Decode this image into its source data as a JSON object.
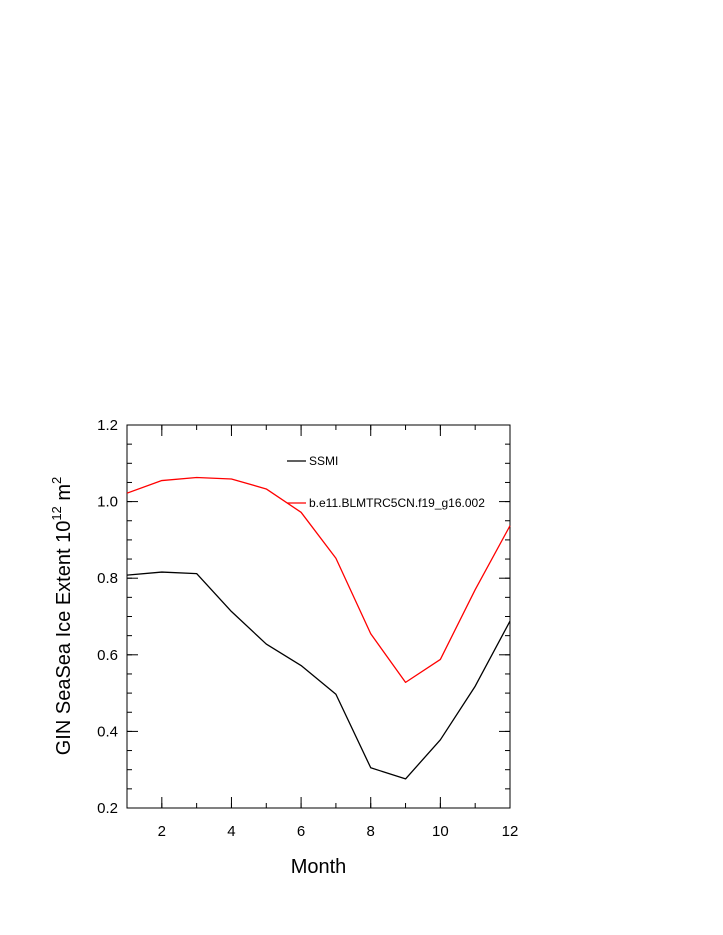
{
  "chart_data": {
    "type": "line",
    "xlabel": "Month",
    "ylabel": "GIN SeaSea Ice Extent 10",
    "ylabel_superscript": "12",
    "ylabel_unit": " m",
    "ylabel_unit_superscript": "2",
    "xlim": [
      1,
      12
    ],
    "ylim": [
      0.2,
      1.2
    ],
    "xticks": [
      2,
      4,
      6,
      8,
      10,
      12
    ],
    "xtick_labels": [
      "2",
      "4",
      "6",
      "8",
      "10",
      "12"
    ],
    "yticks": [
      0.2,
      0.4,
      0.6,
      0.8,
      1.0,
      1.2
    ],
    "ytick_labels": [
      "0.2",
      "0.4",
      "0.6",
      "0.8",
      "1.0",
      "1.2"
    ],
    "grid": false,
    "legend_position": "top-right",
    "x": [
      1,
      2,
      3,
      4,
      5,
      6,
      7,
      8,
      9,
      10,
      11,
      12
    ],
    "series": [
      {
        "name": "SSMI",
        "color": "#000000",
        "values": [
          0.808,
          0.816,
          0.812,
          0.713,
          0.628,
          0.572,
          0.497,
          0.305,
          0.276,
          0.378,
          0.518,
          0.688
        ]
      },
      {
        "name": "b.e11.BLMTRC5CN.f19_g16.002",
        "color": "#ff0000",
        "values": [
          1.022,
          1.055,
          1.063,
          1.059,
          1.033,
          0.972,
          0.852,
          0.655,
          0.528,
          0.588,
          0.77,
          0.937
        ]
      }
    ]
  }
}
